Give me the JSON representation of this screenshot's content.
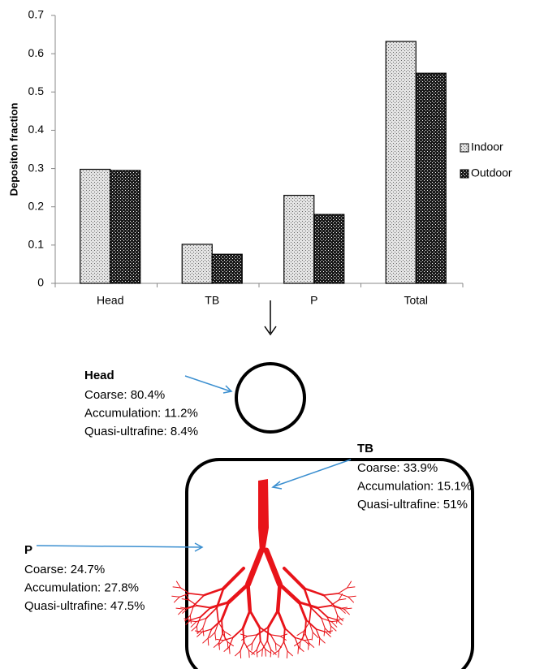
{
  "chart_data": {
    "type": "bar",
    "y_label": "Depositon fraction",
    "categories": [
      "Head",
      "TB",
      "P",
      "Total"
    ],
    "series": [
      {
        "name": "Indoor",
        "color": "#e4e4e4",
        "values": [
          0.298,
          0.102,
          0.23,
          0.632
        ]
      },
      {
        "name": "Outdoor",
        "color": "#1a1a1a",
        "values": [
          0.295,
          0.076,
          0.18,
          0.549
        ]
      }
    ],
    "ylim": [
      0,
      0.7
    ],
    "yticks": [
      0,
      0.1,
      0.2,
      0.3,
      0.4,
      0.5,
      0.6,
      0.7
    ],
    "grid": false,
    "legend": "right"
  },
  "diagram": {
    "regions": [
      {
        "title": "Head",
        "lines": [
          "Coarse: 80.4%",
          "Accumulation: 11.2%",
          "Quasi-ultrafine: 8.4%"
        ]
      },
      {
        "title": "TB",
        "lines": [
          "Coarse: 33.9%",
          "Accumulation: 15.1%",
          "Quasi-ultrafine: 51%"
        ]
      },
      {
        "title": "P",
        "lines": [
          "Coarse: 24.7%",
          "Accumulation: 27.8%",
          "Quasi-ultrafine: 47.5%"
        ]
      }
    ]
  }
}
